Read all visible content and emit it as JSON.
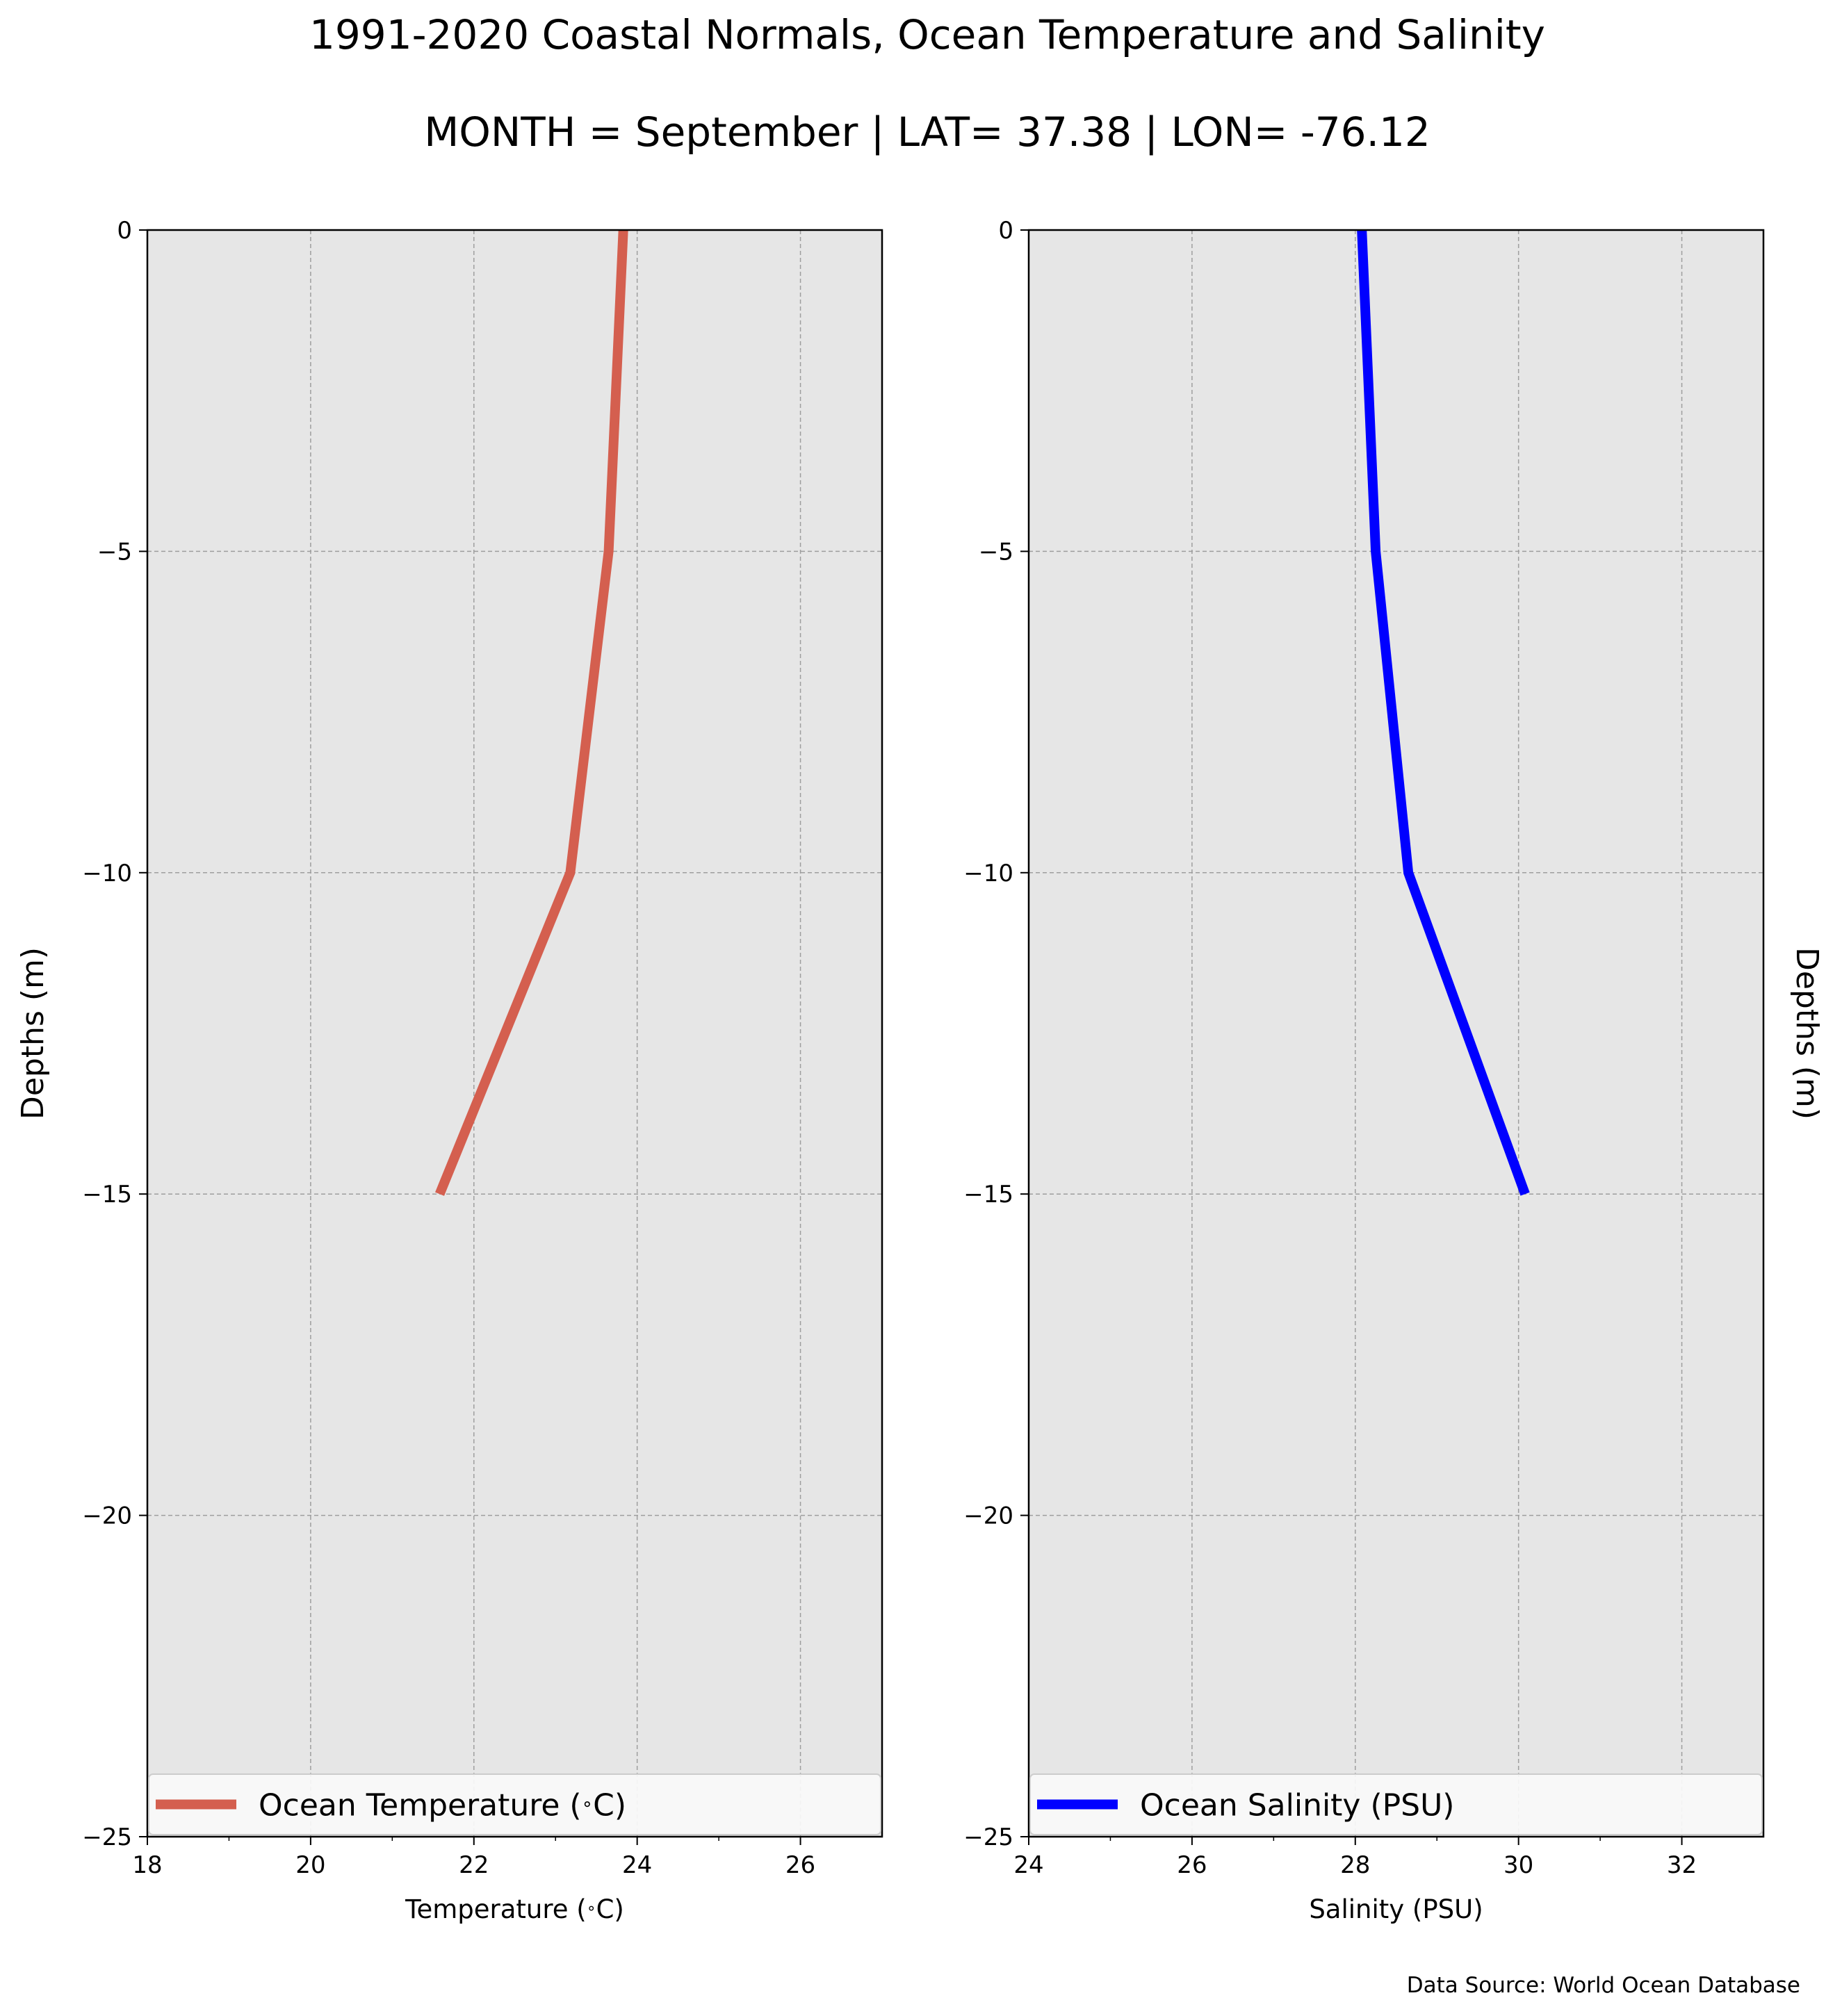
{
  "figure": {
    "title": "1991-2020 Coastal Normals, Ocean Temperature and Salinity",
    "subtitle": "MONTH = September | LAT= 37.38 | LON= -76.12",
    "footer": "Data Source: World Ocean Database",
    "colors": {
      "background": "#ffffff",
      "plot_background": "#e6e6e6",
      "grid": "#9e9e9e",
      "temperature_line": "#d45f4f",
      "salinity_line": "#0000ff"
    }
  },
  "chart_data": [
    {
      "type": "line",
      "xlabel": "Temperature ($^\\circ$C)",
      "ylabel": "Depths (m)",
      "xlim": [
        18,
        27
      ],
      "ylim": [
        -25,
        0
      ],
      "xticks": [
        18,
        20,
        22,
        24,
        26
      ],
      "xtick_labels": [
        "18",
        "20",
        "22",
        "24",
        "26"
      ],
      "yticks": [
        0,
        -5,
        -10,
        -15,
        -20,
        -25
      ],
      "ytick_labels": [
        "0",
        "−5",
        "−10",
        "−15",
        "−20",
        "−25"
      ],
      "grid": true,
      "legend_position": "bottom",
      "series": [
        {
          "name": "Ocean Temperature ($^\\circ$C)",
          "color": "#d45f4f",
          "x": [
            23.83,
            23.65,
            23.18,
            21.58
          ],
          "y": [
            0,
            -5,
            -10,
            -15
          ]
        }
      ]
    },
    {
      "type": "line",
      "xlabel": "Salinity (PSU)",
      "ylabel": "Depths (m)",
      "xlim": [
        24,
        33
      ],
      "ylim": [
        -25,
        0
      ],
      "xticks": [
        24,
        26,
        28,
        30,
        32
      ],
      "xtick_labels": [
        "24",
        "26",
        "28",
        "30",
        "32"
      ],
      "yticks": [
        0,
        -5,
        -10,
        -15,
        -20,
        -25
      ],
      "ytick_labels": [
        "0",
        "−5",
        "−10",
        "−15",
        "−20",
        "−25"
      ],
      "grid": true,
      "legend_position": "bottom",
      "series": [
        {
          "name": "Ocean Salinity (PSU)",
          "color": "#0000ff",
          "x": [
            28.08,
            28.25,
            28.65,
            30.08
          ],
          "y": [
            0,
            -5,
            -10,
            -15
          ]
        }
      ]
    }
  ]
}
